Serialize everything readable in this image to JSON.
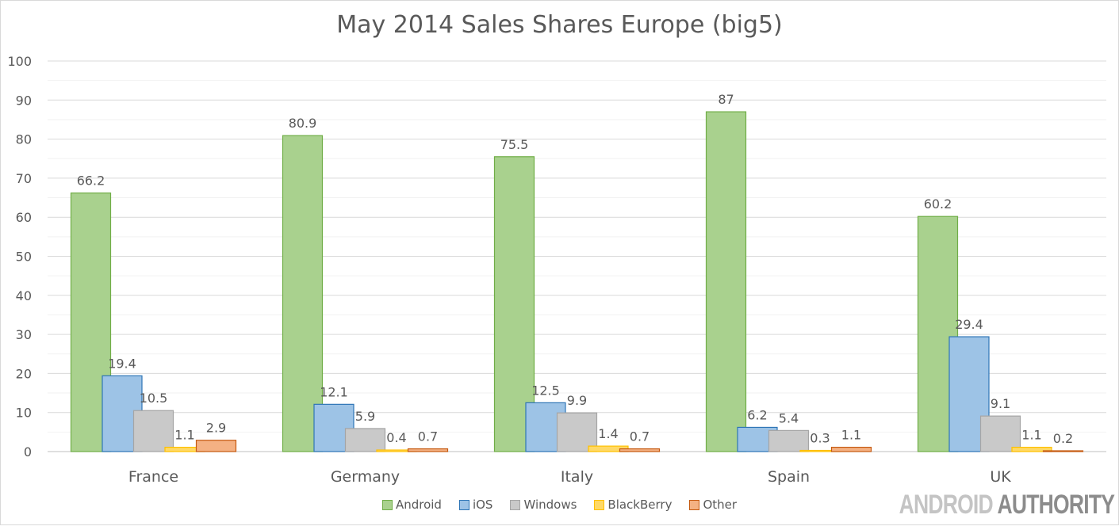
{
  "chart_data": {
    "type": "bar",
    "title": "May 2014 Sales Shares Europe (big5)",
    "xlabel": "",
    "ylabel": "",
    "ylim": [
      0,
      100
    ],
    "yticks": [
      0,
      10,
      20,
      30,
      40,
      50,
      60,
      70,
      80,
      90,
      100
    ],
    "grid": true,
    "legend_position": "bottom",
    "categories": [
      "France",
      "Germany",
      "Italy",
      "Spain",
      "UK"
    ],
    "series": [
      {
        "name": "Android",
        "values": [
          66.2,
          80.9,
          75.5,
          87,
          60.2
        ],
        "color": "#a9d18e",
        "stroke": "#70ad47"
      },
      {
        "name": "iOS",
        "values": [
          19.4,
          12.1,
          12.5,
          6.2,
          29.4
        ],
        "color": "#9dc3e6",
        "stroke": "#2e75b6"
      },
      {
        "name": "Windows",
        "values": [
          10.5,
          5.9,
          9.9,
          5.4,
          9.1
        ],
        "color": "#c9c9c9",
        "stroke": "#a5a5a5"
      },
      {
        "name": "BlackBerry",
        "values": [
          1.1,
          0.4,
          1.4,
          0.3,
          1.1
        ],
        "color": "#ffd966",
        "stroke": "#ffc000"
      },
      {
        "name": "Other",
        "values": [
          2.9,
          0.7,
          0.7,
          1.1,
          0.2
        ],
        "color": "#f4b183",
        "stroke": "#c55a11"
      }
    ]
  },
  "watermark": {
    "part1": "ANDROID",
    "part2": "AUTHORITY"
  }
}
